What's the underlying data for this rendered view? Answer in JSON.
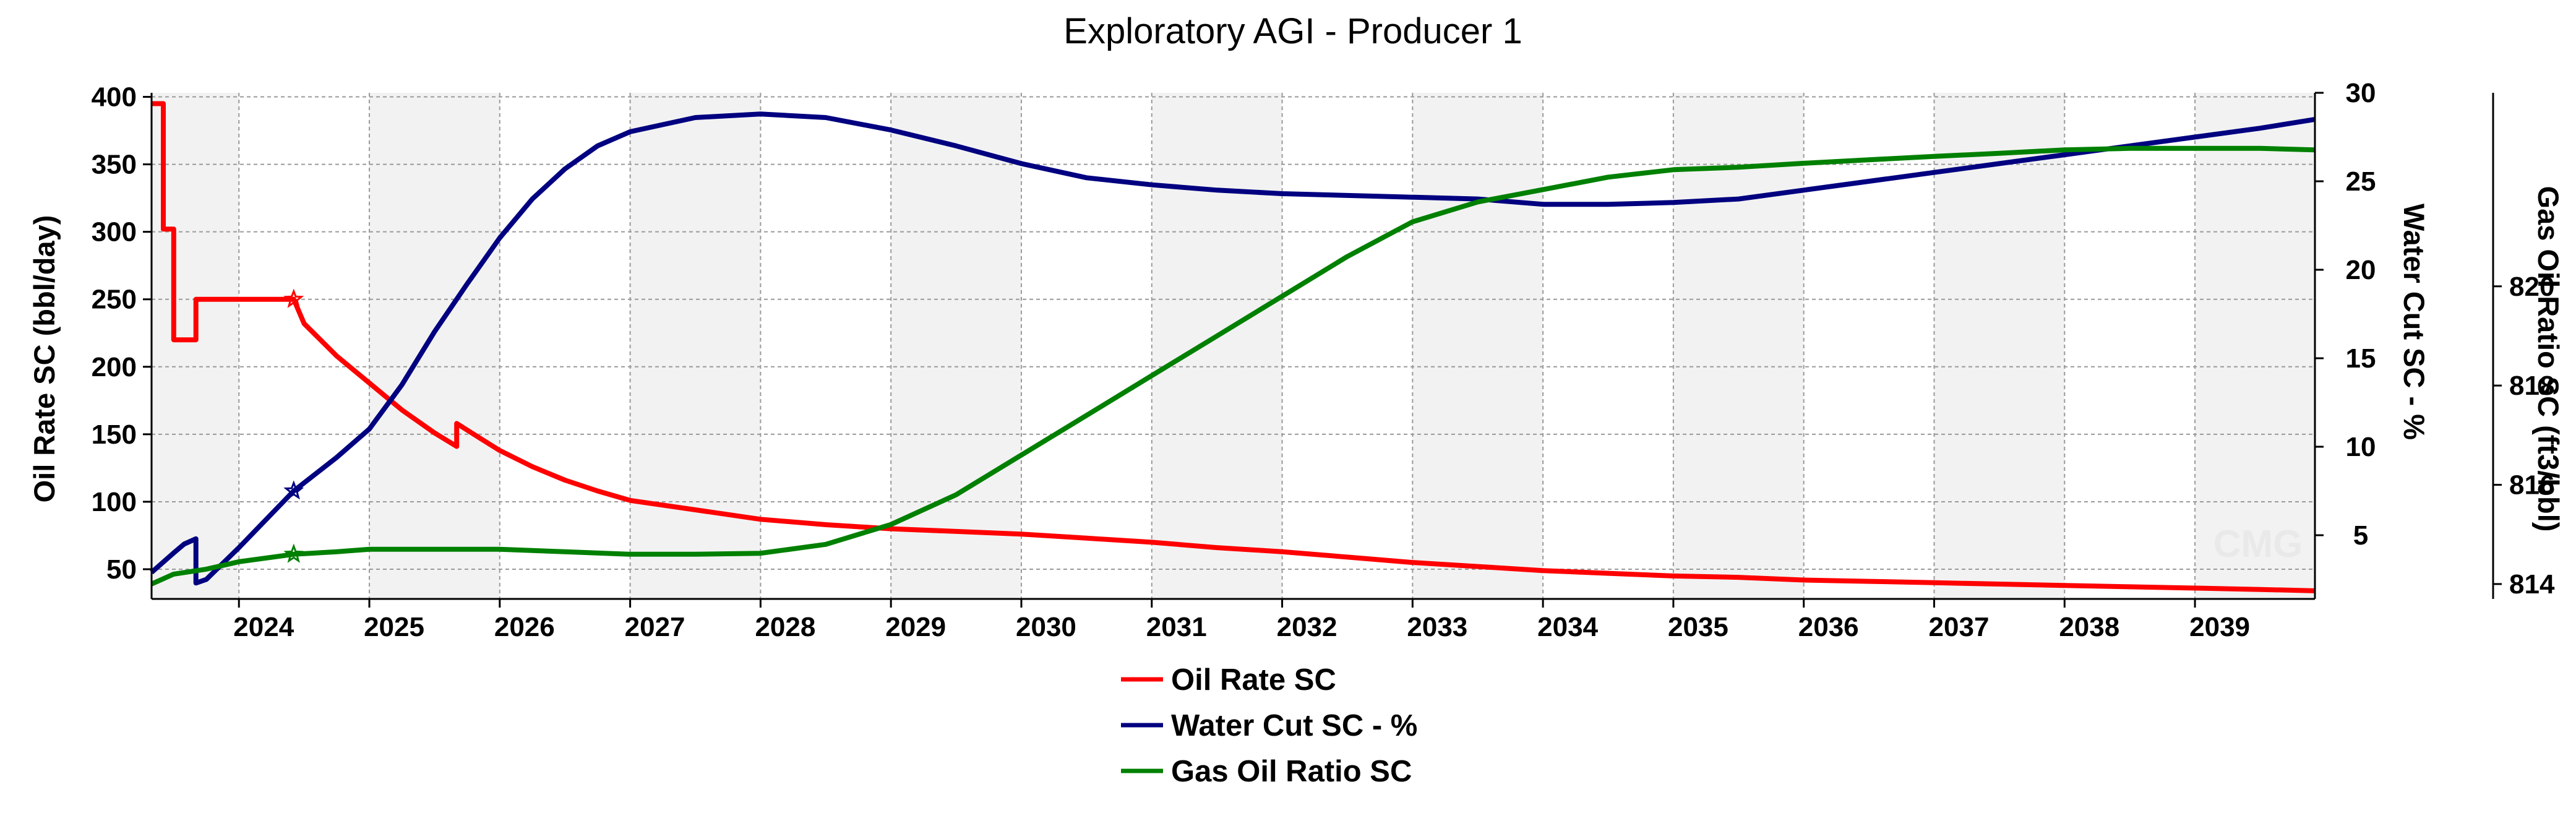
{
  "chart_data": {
    "type": "line",
    "title": "Exploratory AGI - Producer 1",
    "watermark": "CMG",
    "x_ticks": [
      "2024",
      "2025",
      "2026",
      "2027",
      "2028",
      "2029",
      "2030",
      "2031",
      "2032",
      "2033",
      "2034",
      "2035",
      "2036",
      "2037",
      "2038",
      "2039"
    ],
    "xlim": [
      2023.33,
      2039.92
    ],
    "axes": {
      "left": {
        "label": "Oil Rate SC (bbl/day)",
        "ylim": [
          28,
          403
        ],
        "ticks": [
          50,
          100,
          150,
          200,
          250,
          300,
          350,
          400
        ]
      },
      "right1": {
        "label": "Water Cut SC - %",
        "ylim": [
          1.4,
          30
        ],
        "ticks": [
          5,
          10,
          15,
          20,
          25,
          30
        ]
      },
      "right2": {
        "label": "Gas Oil Ratio SC (ft3/bbl)",
        "ylim": [
          813.7,
          823.9
        ],
        "ticks": [
          814,
          816,
          818,
          820
        ]
      }
    },
    "grid": true,
    "legend_position": "bottom-center",
    "series": [
      {
        "name": "Oil Rate SC",
        "axis": "left",
        "color": "#ff0000",
        "marker_x": 2024.42,
        "points": [
          [
            2023.33,
            395
          ],
          [
            2023.42,
            395
          ],
          [
            2023.42,
            302
          ],
          [
            2023.5,
            302
          ],
          [
            2023.5,
            220
          ],
          [
            2023.67,
            220
          ],
          [
            2023.67,
            250
          ],
          [
            2024.42,
            250
          ],
          [
            2024.5,
            232
          ],
          [
            2024.75,
            208
          ],
          [
            2025.0,
            188
          ],
          [
            2025.25,
            168
          ],
          [
            2025.5,
            151
          ],
          [
            2025.67,
            141
          ],
          [
            2025.67,
            158
          ],
          [
            2025.85,
            147
          ],
          [
            2026.0,
            138
          ],
          [
            2026.25,
            126
          ],
          [
            2026.5,
            116
          ],
          [
            2026.75,
            108
          ],
          [
            2027.0,
            101
          ],
          [
            2027.5,
            94
          ],
          [
            2028.0,
            87
          ],
          [
            2028.5,
            83
          ],
          [
            2029.0,
            80
          ],
          [
            2029.5,
            78
          ],
          [
            2030.0,
            76
          ],
          [
            2030.5,
            73
          ],
          [
            2031.0,
            70
          ],
          [
            2031.5,
            66
          ],
          [
            2032.0,
            63
          ],
          [
            2032.5,
            59
          ],
          [
            2033.0,
            55
          ],
          [
            2033.5,
            52
          ],
          [
            2034.0,
            49
          ],
          [
            2034.5,
            47
          ],
          [
            2035.0,
            45
          ],
          [
            2035.5,
            44
          ],
          [
            2036.0,
            42
          ],
          [
            2036.5,
            41
          ],
          [
            2037.0,
            40
          ],
          [
            2037.5,
            39
          ],
          [
            2038.0,
            38
          ],
          [
            2038.5,
            37
          ],
          [
            2039.0,
            36
          ],
          [
            2039.5,
            35
          ],
          [
            2039.92,
            34
          ]
        ]
      },
      {
        "name": "Water Cut SC - %",
        "axis": "right1",
        "color": "#000080",
        "marker_x": 2024.42,
        "points": [
          [
            2023.33,
            2.9
          ],
          [
            2023.5,
            4.0
          ],
          [
            2023.58,
            4.5
          ],
          [
            2023.67,
            4.8
          ],
          [
            2023.67,
            2.3
          ],
          [
            2023.75,
            2.5
          ],
          [
            2024.0,
            4.3
          ],
          [
            2024.42,
            7.5
          ],
          [
            2024.75,
            9.4
          ],
          [
            2025.0,
            11.0
          ],
          [
            2025.25,
            13.5
          ],
          [
            2025.5,
            16.5
          ],
          [
            2025.75,
            19.2
          ],
          [
            2026.0,
            21.8
          ],
          [
            2026.25,
            24.0
          ],
          [
            2026.5,
            25.7
          ],
          [
            2026.75,
            27.0
          ],
          [
            2027.0,
            27.8
          ],
          [
            2027.5,
            28.6
          ],
          [
            2028.0,
            28.8
          ],
          [
            2028.5,
            28.6
          ],
          [
            2029.0,
            27.9
          ],
          [
            2029.5,
            27.0
          ],
          [
            2030.0,
            26.0
          ],
          [
            2030.5,
            25.2
          ],
          [
            2031.0,
            24.8
          ],
          [
            2031.5,
            24.5
          ],
          [
            2032.0,
            24.3
          ],
          [
            2032.5,
            24.2
          ],
          [
            2033.0,
            24.1
          ],
          [
            2033.5,
            24.0
          ],
          [
            2034.0,
            23.7
          ],
          [
            2034.5,
            23.7
          ],
          [
            2035.0,
            23.8
          ],
          [
            2035.5,
            24.0
          ],
          [
            2036.0,
            24.5
          ],
          [
            2036.5,
            25.0
          ],
          [
            2037.0,
            25.5
          ],
          [
            2037.5,
            26.0
          ],
          [
            2038.0,
            26.5
          ],
          [
            2038.5,
            27.0
          ],
          [
            2039.0,
            27.5
          ],
          [
            2039.5,
            28.0
          ],
          [
            2039.92,
            28.5
          ]
        ]
      },
      {
        "name": "Gas Oil Ratio SC",
        "axis": "right2",
        "color": "#008000",
        "marker_x": 2024.42,
        "points": [
          [
            2023.33,
            814.0
          ],
          [
            2023.5,
            814.2
          ],
          [
            2023.75,
            814.3
          ],
          [
            2024.0,
            814.45
          ],
          [
            2024.42,
            814.6
          ],
          [
            2024.75,
            814.65
          ],
          [
            2025.0,
            814.7
          ],
          [
            2025.5,
            814.7
          ],
          [
            2026.0,
            814.7
          ],
          [
            2026.5,
            814.65
          ],
          [
            2027.0,
            814.6
          ],
          [
            2027.5,
            814.6
          ],
          [
            2028.0,
            814.62
          ],
          [
            2028.5,
            814.8
          ],
          [
            2029.0,
            815.2
          ],
          [
            2029.5,
            815.8
          ],
          [
            2030.0,
            816.6
          ],
          [
            2030.5,
            817.4
          ],
          [
            2031.0,
            818.2
          ],
          [
            2031.5,
            819.0
          ],
          [
            2032.0,
            819.8
          ],
          [
            2032.5,
            820.6
          ],
          [
            2033.0,
            821.3
          ],
          [
            2033.5,
            821.7
          ],
          [
            2034.0,
            821.95
          ],
          [
            2034.5,
            822.2
          ],
          [
            2035.0,
            822.35
          ],
          [
            2035.5,
            822.4
          ],
          [
            2036.0,
            822.48
          ],
          [
            2036.5,
            822.55
          ],
          [
            2037.0,
            822.62
          ],
          [
            2037.5,
            822.68
          ],
          [
            2038.0,
            822.75
          ],
          [
            2038.5,
            822.78
          ],
          [
            2039.0,
            822.78
          ],
          [
            2039.5,
            822.78
          ],
          [
            2039.92,
            822.75
          ]
        ]
      }
    ]
  }
}
